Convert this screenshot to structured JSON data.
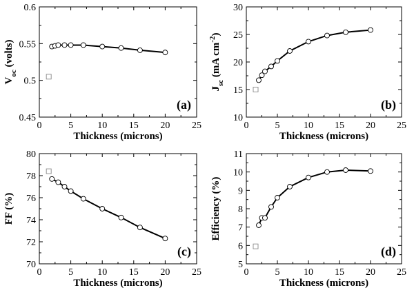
{
  "chart_data": [
    {
      "type": "scatter",
      "panel_label": "(a)",
      "xlabel": "Thickness (microns)",
      "ylabel": "V",
      "ylabel_sub": "oc",
      "ylabel_rest": " (volts)",
      "xlim": [
        0,
        25
      ],
      "ylim": [
        0.45,
        0.6
      ],
      "xticks": [
        "0",
        "5",
        "10",
        "15",
        "20",
        "25"
      ],
      "yticks": [
        "0.45",
        "0.5",
        "0.55",
        "0.6"
      ],
      "series": [
        {
          "marker": "circle",
          "line": true,
          "points": [
            [
              2,
              0.546
            ],
            [
              2.5,
              0.547
            ],
            [
              3,
              0.548
            ],
            [
              4,
              0.548
            ],
            [
              5,
              0.548
            ],
            [
              7,
              0.548
            ],
            [
              10,
              0.546
            ],
            [
              13,
              0.544
            ],
            [
              16,
              0.541
            ],
            [
              20,
              0.538
            ]
          ]
        },
        {
          "marker": "square",
          "line": false,
          "points": [
            [
              1.5,
              0.505
            ]
          ]
        }
      ]
    },
    {
      "type": "scatter",
      "panel_label": "(b)",
      "xlabel": "Thickness (microns)",
      "ylabel": "J",
      "ylabel_sub": "sc",
      "ylabel_rest": " (mA cm",
      "ylabel_sup": "-2",
      "ylabel_end": ")",
      "xlim": [
        0,
        25
      ],
      "ylim": [
        10,
        30
      ],
      "xticks": [
        "0",
        "5",
        "10",
        "15",
        "20",
        "25"
      ],
      "yticks": [
        "10",
        "15",
        "20",
        "25",
        "30"
      ],
      "series": [
        {
          "marker": "circle",
          "line": true,
          "points": [
            [
              2,
              16.7
            ],
            [
              2.5,
              17.6
            ],
            [
              3,
              18.3
            ],
            [
              4,
              19.2
            ],
            [
              5,
              20.2
            ],
            [
              7,
              22.0
            ],
            [
              10,
              23.7
            ],
            [
              13,
              24.8
            ],
            [
              16,
              25.4
            ],
            [
              20,
              25.8
            ]
          ]
        },
        {
          "marker": "square",
          "line": false,
          "points": [
            [
              1.5,
              15.0
            ]
          ]
        }
      ]
    },
    {
      "type": "scatter",
      "panel_label": "(c)",
      "xlabel": "Thickness (microns)",
      "ylabel": "FF (%)",
      "xlim": [
        0,
        25
      ],
      "ylim": [
        70,
        80
      ],
      "xticks": [
        "0",
        "5",
        "10",
        "15",
        "20",
        "25"
      ],
      "yticks": [
        "70",
        "72",
        "74",
        "76",
        "78",
        "80"
      ],
      "series": [
        {
          "marker": "circle",
          "line": true,
          "points": [
            [
              2,
              77.7
            ],
            [
              3,
              77.4
            ],
            [
              4,
              77.0
            ],
            [
              5,
              76.6
            ],
            [
              7,
              75.9
            ],
            [
              10,
              75.0
            ],
            [
              13,
              74.2
            ],
            [
              16,
              73.3
            ],
            [
              20,
              72.3
            ]
          ]
        },
        {
          "marker": "square",
          "line": false,
          "points": [
            [
              1.5,
              78.4
            ]
          ]
        }
      ]
    },
    {
      "type": "scatter",
      "panel_label": "(d)",
      "xlabel": "Thickness (microns)",
      "ylabel": "Efficiency (%)",
      "xlim": [
        0,
        25
      ],
      "ylim": [
        5,
        11
      ],
      "xticks": [
        "0",
        "5",
        "10",
        "15",
        "20",
        "25"
      ],
      "yticks": [
        "5",
        "6",
        "7",
        "8",
        "9",
        "10",
        "11"
      ],
      "series": [
        {
          "marker": "circle",
          "line": true,
          "points": [
            [
              2,
              7.1
            ],
            [
              2.5,
              7.5
            ],
            [
              3,
              7.5
            ],
            [
              4,
              8.1
            ],
            [
              5,
              8.6
            ],
            [
              7,
              9.2
            ],
            [
              10,
              9.7
            ],
            [
              13,
              10.0
            ],
            [
              16,
              10.1
            ],
            [
              20,
              10.05
            ]
          ]
        },
        {
          "marker": "square",
          "line": false,
          "points": [
            [
              1.5,
              5.95
            ]
          ]
        }
      ]
    }
  ]
}
